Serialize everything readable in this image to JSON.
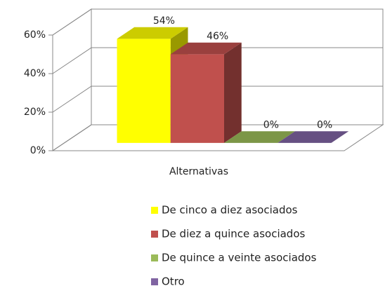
{
  "chart_data": {
    "type": "bar3d",
    "categories": [
      "Alternativas"
    ],
    "series": [
      {
        "name": "De cinco a diez asociados",
        "color": "#ffff00",
        "values": [
          54
        ],
        "value_labels": [
          "54%"
        ]
      },
      {
        "name": "De diez a quince asociados",
        "color": "#c0504d",
        "values": [
          46
        ],
        "value_labels": [
          "46%"
        ]
      },
      {
        "name": "De quince a veinte asociados",
        "color": "#9bbb59",
        "values": [
          0
        ],
        "value_labels": [
          "0%"
        ]
      },
      {
        "name": "Otro",
        "color": "#8064a2",
        "values": [
          0
        ],
        "value_labels": [
          "0%"
        ]
      }
    ],
    "ylim": [
      0,
      60
    ],
    "yticks": [
      {
        "value": 0,
        "label": "0%"
      },
      {
        "value": 20,
        "label": "20%"
      },
      {
        "value": 40,
        "label": "40%"
      },
      {
        "value": 60,
        "label": "60%"
      }
    ],
    "grid": true,
    "legend": "bottom"
  }
}
